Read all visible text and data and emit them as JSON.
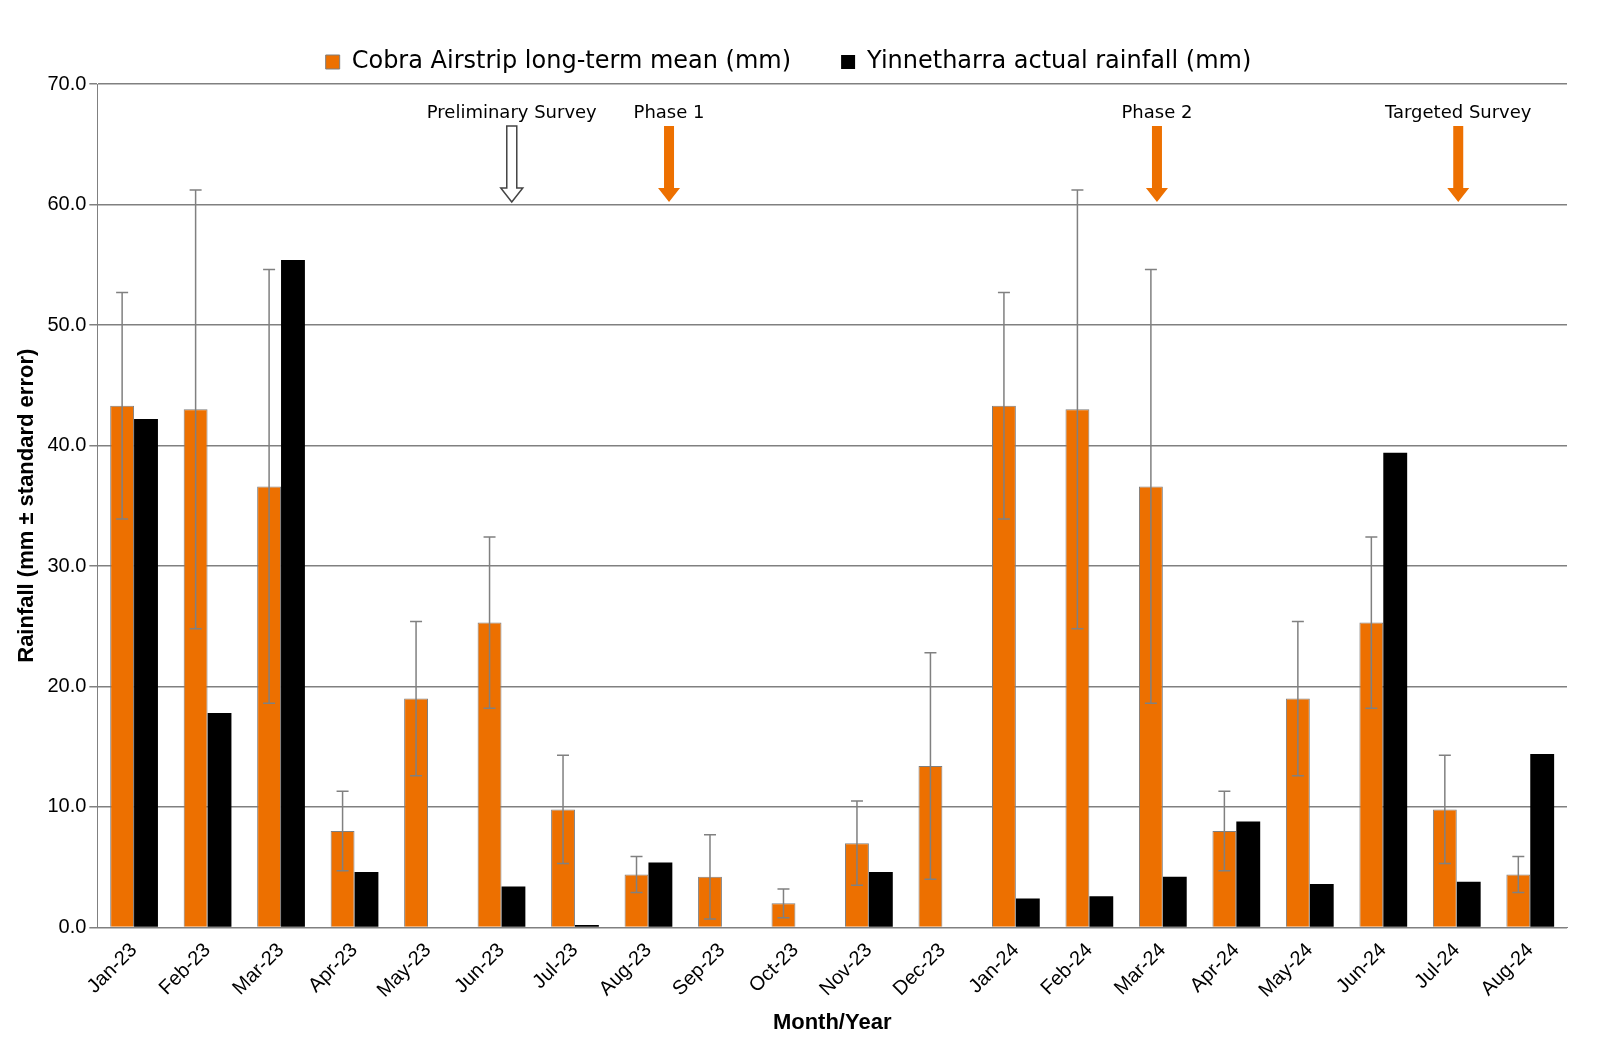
{
  "chart_data": {
    "type": "bar",
    "xlabel": "Month/Year",
    "ylabel": "Rainfall (mm ± standard error)",
    "categories": [
      "Jan-23",
      "Feb-23",
      "Mar-23",
      "Apr-23",
      "May-23",
      "Jun-23",
      "Jul-23",
      "Aug-23",
      "Sep-23",
      "Oct-23",
      "Nov-23",
      "Dec-23",
      "Jan-24",
      "Feb-24",
      "Mar-24",
      "Apr-24",
      "May-24",
      "Jun-24",
      "Jul-24",
      "Aug-24"
    ],
    "series": [
      {
        "name": "Cobra Airstrip long-term mean (mm)",
        "color": "#ed7000",
        "values": [
          43.3,
          43.0,
          36.6,
          8.0,
          19.0,
          25.3,
          9.8,
          4.4,
          4.2,
          2.0,
          7.0,
          13.4,
          43.3,
          43.0,
          36.6,
          8.0,
          19.0,
          25.3,
          9.8,
          4.4
        ],
        "errors": [
          9.4,
          18.2,
          18.0,
          3.3,
          6.4,
          7.1,
          4.5,
          1.5,
          3.5,
          1.2,
          3.5,
          9.4,
          9.4,
          18.2,
          18.0,
          3.3,
          6.4,
          7.1,
          4.5,
          1.5
        ]
      },
      {
        "name": "Yinnetharra actual rainfall (mm)",
        "color": "#000000",
        "values": [
          42.2,
          17.8,
          55.4,
          4.6,
          0,
          3.4,
          0.2,
          5.4,
          0,
          0,
          4.6,
          0,
          2.4,
          2.6,
          4.2,
          8.8,
          3.6,
          39.4,
          3.8,
          14.4
        ]
      }
    ],
    "ylim": [
      0,
      70
    ],
    "yticks": [
      {
        "value": 0,
        "label": "0.0"
      },
      {
        "value": 10,
        "label": "10.0"
      },
      {
        "value": 20,
        "label": "20.0"
      },
      {
        "value": 30,
        "label": "30.0"
      },
      {
        "value": 40,
        "label": "40.0"
      },
      {
        "value": 50,
        "label": "50.0"
      },
      {
        "value": 60,
        "label": "60.0"
      },
      {
        "value": 70,
        "label": "70.0"
      }
    ],
    "grid": "y",
    "legend": "top",
    "annotations": [
      "Preliminary Survey",
      "Phase 1",
      "Phase 2",
      "Targeted Survey"
    ]
  }
}
